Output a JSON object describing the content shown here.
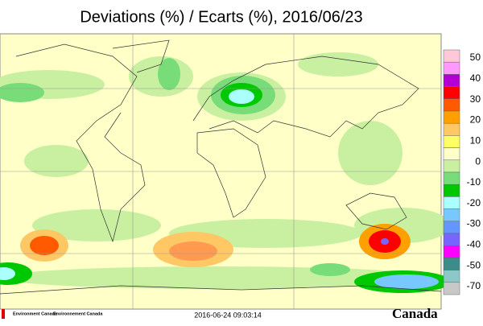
{
  "title": "Deviations (%) / Ecarts (%), 2016/06/23",
  "colorbar": {
    "ticks": [
      50,
      40,
      30,
      20,
      10,
      0,
      -10,
      -20,
      -30,
      -40,
      -50,
      -70
    ],
    "colors": [
      "#ffc8d8",
      "#ff99ff",
      "#b400d2",
      "#ff0000",
      "#ff5a00",
      "#ffa000",
      "#ffc864",
      "#ffff64",
      "#ffffc8",
      "#c8f0a0",
      "#78dc78",
      "#00c800",
      "#aaffff",
      "#78c8ff",
      "#6496ff",
      "#7864ff",
      "#ff00ff",
      "#3c8c8c",
      "#8cc8c8",
      "#c8c8c8"
    ]
  },
  "footer": {
    "agency_en": "Environment Canada",
    "agency_fr": "Environnement Canada",
    "timestamp": "2016-06-24 09:03:14",
    "wordmark": "Canada"
  }
}
